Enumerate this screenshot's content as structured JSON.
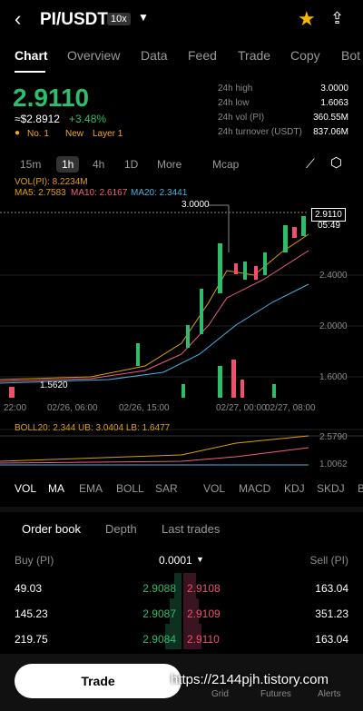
{
  "header": {
    "pair": "PI/USDT",
    "leverage": "10x"
  },
  "tabs": [
    "Chart",
    "Overview",
    "Data",
    "Feed",
    "Trade",
    "Copy",
    "Bot"
  ],
  "price": {
    "last": "2.9110",
    "usd": "≈$2.8912",
    "change": "+3.48%",
    "tags": [
      "No. 1",
      "New",
      "Layer 1"
    ]
  },
  "stats": [
    {
      "label": "24h high",
      "value": "3.0000"
    },
    {
      "label": "24h low",
      "value": "1.6063"
    },
    {
      "label": "24h vol (PI)",
      "value": "360.55M"
    },
    {
      "label": "24h turnover (USDT)",
      "value": "837.06M"
    }
  ],
  "intervals": [
    "15m",
    "1h",
    "4h",
    "1D",
    "More",
    "Mcap"
  ],
  "indicators": {
    "vol": "VOL(PI): 8.2234M",
    "ma5": "MA5: 2.7583",
    "ma10": "MA10: 2.6167",
    "ma20": "MA20: 2.3441",
    "boll": "BOLL20: 2.344 UB: 3.0404 LB: 1.6477"
  },
  "chart_labels": {
    "high": "3.0000",
    "current": "2.9110",
    "countdown": "05:49",
    "low": "1.5620",
    "axis": [
      "2.4000",
      "2.0000",
      "1.6000"
    ],
    "boll_axis": [
      "2.5790",
      "1.0062"
    ]
  },
  "time_axis": [
    "22:00",
    "02/26, 06:00",
    "02/26, 15:00",
    "02/27, 00:00",
    "02/27, 08:00"
  ],
  "indicator_tabs": [
    "VOL",
    "MA",
    "EMA",
    "BOLL",
    "SAR",
    "VOL",
    "MACD",
    "KDJ",
    "SKDJ",
    "B"
  ],
  "orderbook": {
    "tabs": [
      "Order book",
      "Depth",
      "Last trades"
    ],
    "buy_header": "Buy (PI)",
    "precision": "0.0001",
    "sell_header": "Sell (PI)",
    "rows": [
      [
        "49.03",
        "2.9088",
        "2.9108",
        "163.04"
      ],
      [
        "145.23",
        "2.9087",
        "2.9109",
        "351.23"
      ],
      [
        "219.75",
        "2.9084",
        "2.9110",
        "163.04"
      ]
    ]
  },
  "bottom": {
    "trade": "Trade",
    "nav": [
      "Grid",
      "Futures",
      "Alerts"
    ],
    "watermark": "https://2144pjh.tistory.com"
  }
}
